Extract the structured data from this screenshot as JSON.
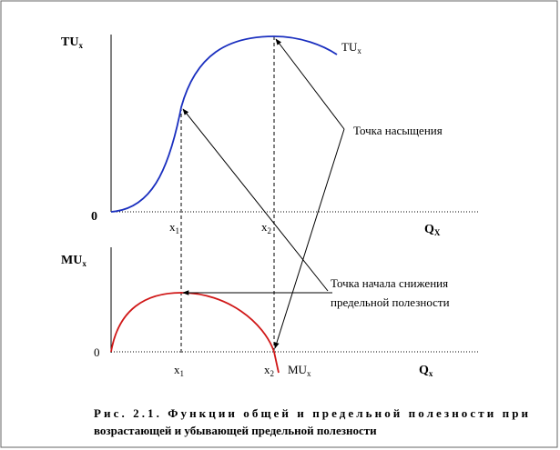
{
  "top_graph": {
    "y_label": {
      "text": "TU",
      "sub": "x"
    },
    "origin": "0",
    "x_label": {
      "text": "Q",
      "sub": "X"
    },
    "curve_label": {
      "text": "TU",
      "sub": "x"
    },
    "ticks": [
      {
        "text": "x",
        "sub": "1"
      },
      {
        "text": "x",
        "sub": "2"
      }
    ]
  },
  "bottom_graph": {
    "y_label": {
      "text": "MU",
      "sub": "x"
    },
    "origin": "0",
    "x_label": {
      "text": "Q",
      "sub": "x"
    },
    "curve_label": {
      "text": "MU",
      "sub": "x"
    },
    "ticks": [
      {
        "text": "x",
        "sub": "1"
      },
      {
        "text": "x",
        "sub": "2"
      }
    ]
  },
  "annotations": {
    "saturation": "Точка насыщения",
    "decline": [
      "Точка начала снижения",
      "предельной полезности"
    ]
  },
  "caption": [
    "Рис. 2.1. Функции общей и предельной полезности при",
    "возрастающей и убывающей предельной полезности"
  ]
}
